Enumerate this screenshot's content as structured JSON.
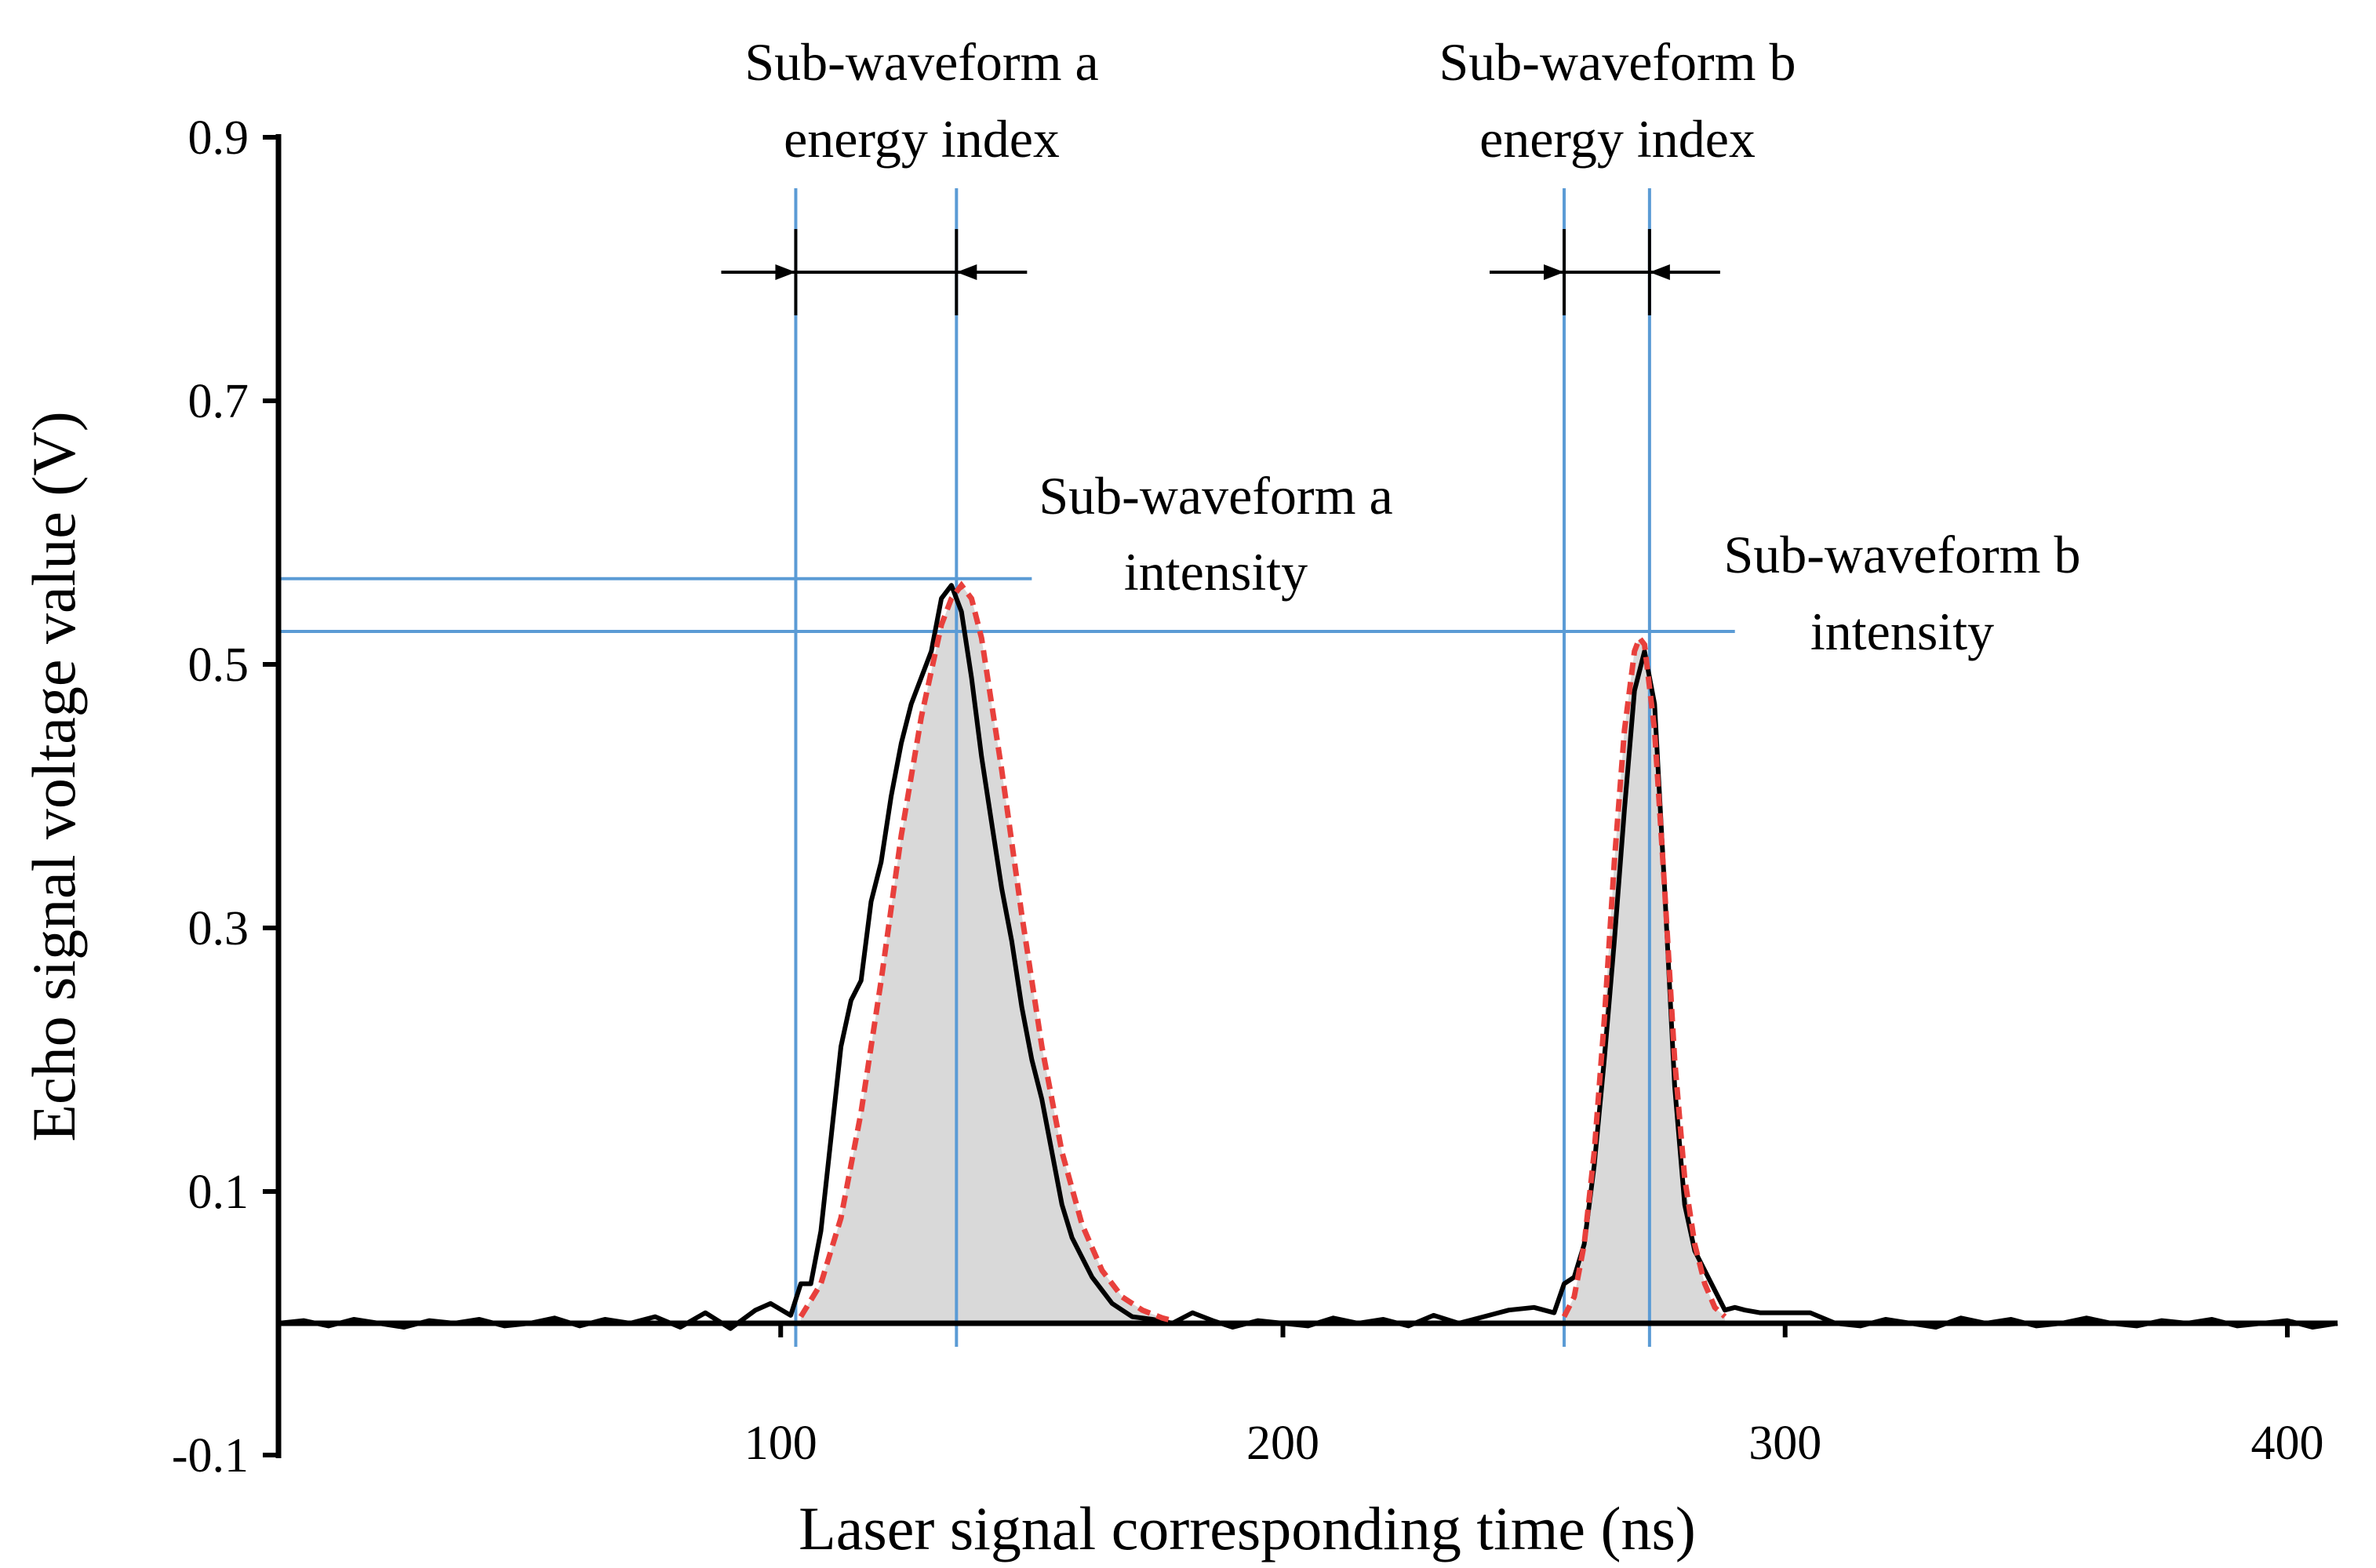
{
  "chart_data": {
    "type": "line",
    "title": "",
    "xlabel": "Laser signal corresponding time (ns)",
    "ylabel": "Echo signal voltage value (V)",
    "xlim": [
      0,
      410
    ],
    "ylim": [
      -0.1,
      0.9
    ],
    "x_ticks": [
      100,
      200,
      300,
      400
    ],
    "x_tick_labels": [
      "100",
      "200",
      "300",
      "400"
    ],
    "y_ticks": [
      -0.1,
      0.1,
      0.3,
      0.5,
      0.7,
      0.9
    ],
    "y_tick_labels": [
      "-0.1",
      "0.1",
      "0.3",
      "0.5",
      "0.7",
      "0.9"
    ],
    "grid": false,
    "legend": "none",
    "colors": {
      "waveform": "#000000",
      "fit": "#e8403c",
      "fill": "#d9d9d9",
      "guide": "#5b9bd5",
      "arrows": "#000000"
    },
    "series": [
      {
        "x": [
          0,
          5,
          10,
          15,
          20,
          25,
          30,
          35,
          40,
          45,
          50,
          55,
          60,
          65,
          70,
          75,
          80,
          85,
          90,
          95,
          98,
          102,
          104,
          106,
          108,
          110,
          112,
          114,
          116,
          118,
          120,
          122,
          124,
          126,
          128,
          130,
          132,
          134,
          136,
          138,
          140,
          142,
          144,
          146,
          148,
          150,
          152,
          154,
          156,
          158,
          160,
          162,
          164,
          166,
          168,
          170,
          174,
          178,
          182,
          186,
          190,
          195,
          200,
          205,
          210,
          215,
          220,
          225,
          230,
          235,
          240,
          245,
          250,
          252,
          254,
          256,
          258,
          260,
          262,
          264,
          266,
          268,
          270,
          272,
          274,
          276,
          278,
          280,
          282,
          284,
          286,
          288,
          290,
          292,
          295,
          300,
          305,
          310,
          315,
          320,
          325,
          330,
          335,
          340,
          345,
          350,
          355,
          360,
          365,
          370,
          375,
          380,
          385,
          390,
          395,
          400,
          405,
          410
        ],
        "y": [
          0.0,
          0.002,
          -0.002,
          0.003,
          0.0,
          -0.003,
          0.002,
          0.0,
          0.003,
          -0.002,
          0.0,
          0.004,
          -0.002,
          0.003,
          0.0,
          0.005,
          -0.003,
          0.008,
          -0.004,
          0.01,
          0.015,
          0.006,
          0.03,
          0.03,
          0.07,
          0.14,
          0.21,
          0.245,
          0.26,
          0.32,
          0.35,
          0.4,
          0.44,
          0.47,
          0.49,
          0.51,
          0.55,
          0.56,
          0.54,
          0.49,
          0.43,
          0.38,
          0.33,
          0.29,
          0.24,
          0.2,
          0.17,
          0.13,
          0.09,
          0.065,
          0.05,
          0.035,
          0.025,
          0.015,
          0.01,
          0.005,
          0.003,
          0.0,
          0.008,
          0.002,
          -0.003,
          0.002,
          0.0,
          -0.002,
          0.004,
          0.0,
          0.003,
          -0.002,
          0.006,
          0.0,
          0.005,
          0.01,
          0.012,
          0.01,
          0.008,
          0.03,
          0.035,
          0.06,
          0.12,
          0.2,
          0.29,
          0.39,
          0.48,
          0.51,
          0.47,
          0.33,
          0.18,
          0.09,
          0.055,
          0.04,
          0.025,
          0.01,
          0.012,
          0.01,
          0.008,
          0.008,
          0.008,
          0.0,
          -0.002,
          0.003,
          0.0,
          -0.003,
          0.004,
          0.0,
          0.003,
          -0.002,
          0.0,
          0.004,
          0.0,
          -0.002,
          0.002,
          0.0,
          0.003,
          -0.002,
          0.0,
          0.002,
          -0.003,
          0.0
        ]
      },
      {
        "x": [
          104,
          108,
          112,
          116,
          120,
          124,
          128,
          132,
          134,
          136,
          138,
          140,
          144,
          148,
          152,
          156,
          160,
          164,
          168,
          172,
          176,
          178,
          256,
          258,
          260,
          262,
          264,
          266,
          268,
          270,
          271,
          272,
          274,
          276,
          278,
          280,
          282,
          284,
          286,
          288
        ],
        "y": [
          0.005,
          0.03,
          0.08,
          0.16,
          0.26,
          0.37,
          0.46,
          0.53,
          0.55,
          0.56,
          0.55,
          0.52,
          0.42,
          0.31,
          0.21,
          0.13,
          0.075,
          0.04,
          0.02,
          0.01,
          0.004,
          0.002,
          0.005,
          0.02,
          0.06,
          0.13,
          0.23,
          0.35,
          0.45,
          0.51,
          0.52,
          0.515,
          0.45,
          0.33,
          0.2,
          0.11,
          0.06,
          0.03,
          0.012,
          0.005
        ]
      }
    ],
    "guide_lines": {
      "vertical_x": [
        103,
        135,
        256,
        273
      ],
      "horizontal_y": [
        0.565,
        0.525
      ]
    },
    "annotations": {
      "a_energy_line1": "Sub-waveform a",
      "a_energy_line2": "energy index",
      "b_energy_line1": "Sub-waveform b",
      "b_energy_line2": "energy index",
      "a_intensity_line1": "Sub-waveform a",
      "a_intensity_line2": "intensity",
      "b_intensity_line1": "Sub-waveform b",
      "b_intensity_line2": "intensity"
    }
  }
}
